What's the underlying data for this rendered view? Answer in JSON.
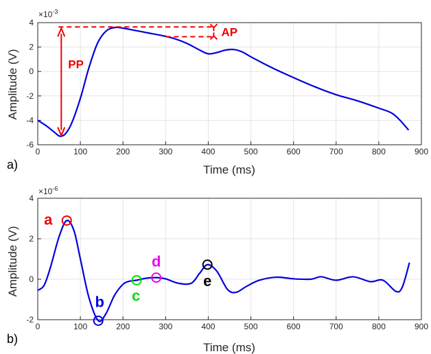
{
  "chart_data": [
    {
      "type": "line",
      "panel_label": "a)",
      "xlabel": "Time (ms)",
      "ylabel": "Amplitude (V)",
      "y_exponent": "×10",
      "y_exponent_power": "-3",
      "xlim": [
        0,
        900
      ],
      "ylim": [
        -6,
        4
      ],
      "xticks": [
        "0",
        "100",
        "200",
        "300",
        "400",
        "500",
        "600",
        "700",
        "800",
        "900"
      ],
      "yticks": [
        "-6",
        "-4",
        "-2",
        "0",
        "2",
        "4"
      ],
      "grid": true,
      "line_color": "#0000dd",
      "x": [
        0,
        20,
        40,
        52,
        65,
        80,
        100,
        120,
        140,
        160,
        180,
        200,
        230,
        260,
        290,
        320,
        350,
        380,
        400,
        420,
        440,
        460,
        480,
        500,
        550,
        600,
        650,
        700,
        750,
        800,
        830,
        850,
        870
      ],
      "y": [
        -4.0,
        -4.45,
        -5.0,
        -5.3,
        -5.1,
        -4.2,
        -2.2,
        0.3,
        2.3,
        3.3,
        3.6,
        3.55,
        3.35,
        3.15,
        2.95,
        2.7,
        2.3,
        1.75,
        1.45,
        1.55,
        1.75,
        1.8,
        1.6,
        1.2,
        0.3,
        -0.5,
        -1.25,
        -1.9,
        -2.4,
        -3.0,
        -3.4,
        -4.0,
        -4.8
      ],
      "annotations": [
        {
          "text": "PP",
          "color": "#ee0000"
        },
        {
          "text": "AP",
          "color": "#ee0000"
        }
      ],
      "annotation_values": {
        "pp_top": 3.65,
        "pp_bottom": -5.3,
        "pp_x": 52,
        "ap_top": 3.65,
        "ap_bottom": 2.85,
        "ap_x": 400,
        "ap_line_start_x": 300
      }
    },
    {
      "type": "line",
      "panel_label": "b)",
      "xlabel": "Time (ms)",
      "ylabel": "Amplitude (V)",
      "y_exponent": "×10",
      "y_exponent_power": "-6",
      "xlim": [
        0,
        900
      ],
      "ylim": [
        -2,
        4
      ],
      "xticks": [
        "0",
        "100",
        "200",
        "300",
        "400",
        "500",
        "600",
        "700",
        "800",
        "900"
      ],
      "yticks": [
        "-2",
        "0",
        "2",
        "4"
      ],
      "grid": true,
      "line_color": "#0000dd",
      "x": [
        0,
        15,
        30,
        50,
        68,
        85,
        100,
        120,
        142,
        160,
        180,
        200,
        215,
        232,
        255,
        278,
        300,
        330,
        360,
        380,
        398,
        420,
        445,
        465,
        490,
        520,
        560,
        600,
        640,
        665,
        700,
        740,
        780,
        810,
        840,
        855,
        872
      ],
      "y": [
        -0.55,
        -0.3,
        0.6,
        2.1,
        2.9,
        2.4,
        1.0,
        -0.9,
        -2.05,
        -1.7,
        -0.8,
        -0.25,
        -0.1,
        -0.05,
        0.05,
        0.08,
        0.02,
        -0.2,
        -0.2,
        0.3,
        0.72,
        0.4,
        -0.5,
        -0.65,
        -0.35,
        -0.05,
        0.1,
        0.02,
        0.0,
        0.12,
        -0.05,
        0.12,
        -0.12,
        -0.05,
        -0.6,
        -0.4,
        0.82
      ],
      "markers": [
        {
          "label": "a",
          "x": 68,
          "y": 2.9,
          "color": "#ee0000"
        },
        {
          "label": "b",
          "x": 142,
          "y": -2.05,
          "color": "#0000dd"
        },
        {
          "label": "c",
          "x": 232,
          "y": -0.05,
          "color": "#00dd00"
        },
        {
          "label": "d",
          "x": 278,
          "y": 0.08,
          "color": "#ee00ee"
        },
        {
          "label": "e",
          "x": 398,
          "y": 0.72,
          "color": "#000000"
        }
      ]
    }
  ]
}
